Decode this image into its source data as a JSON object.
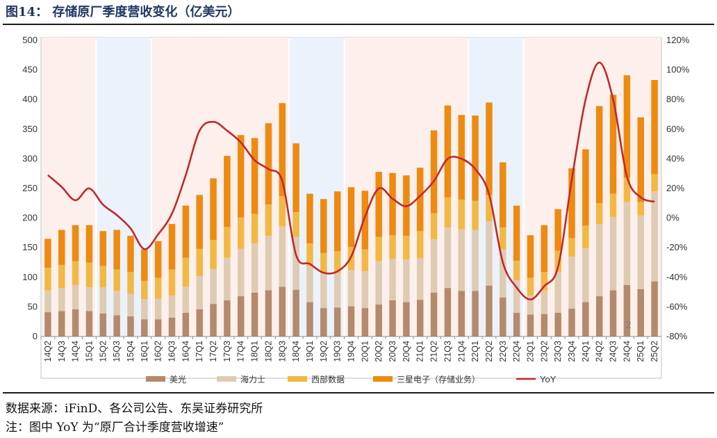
{
  "title": "图14：  存储原厂季度营收变化（亿美元）",
  "source": "数据来源：iFinD、各公司公告、东吴证券研究所",
  "note": "注：图中 YoY 为“原厂合计季度营收增速”",
  "chart_data": {
    "type": "bar",
    "stacked": true,
    "categories": [
      "14Q2",
      "14Q3",
      "14Q4",
      "15Q1",
      "15Q2",
      "15Q3",
      "15Q4",
      "16Q1",
      "16Q2",
      "16Q3",
      "16Q4",
      "17Q1",
      "17Q2",
      "17Q3",
      "17Q4",
      "18Q1",
      "18Q2",
      "18Q3",
      "18Q4",
      "19Q1",
      "19Q2",
      "19Q3",
      "19Q4",
      "20Q1",
      "20Q2",
      "20Q3",
      "20Q4",
      "21Q1",
      "21Q2",
      "21Q3",
      "21Q4",
      "22Q1",
      "22Q2",
      "22Q3",
      "22Q4",
      "23Q1",
      "23Q2",
      "23Q3",
      "23Q4",
      "24Q1",
      "24Q2",
      "24Q3",
      "24Q4",
      "25Q1",
      "25Q2"
    ],
    "series": [
      {
        "name": "美光",
        "color": "#b48a6c",
        "values": [
          41,
          43,
          46,
          43,
          39,
          36,
          34,
          29,
          29,
          32,
          40,
          46,
          55,
          61,
          68,
          74,
          78,
          84,
          79,
          58,
          48,
          49,
          51,
          48,
          54,
          61,
          58,
          62,
          74,
          82,
          77,
          77,
          86,
          66,
          40,
          37,
          38,
          40,
          47,
          58,
          68,
          78,
          87,
          80,
          93
        ]
      },
      {
        "name": "海力士",
        "color": "#dfcbb2",
        "values": [
          37,
          39,
          41,
          40,
          44,
          41,
          38,
          34,
          35,
          37,
          44,
          56,
          59,
          72,
          80,
          83,
          92,
          102,
          89,
          61,
          59,
          58,
          61,
          62,
          73,
          70,
          72,
          70,
          90,
          102,
          104,
          103,
          108,
          81,
          55,
          32,
          40,
          69,
          88,
          91,
          122,
          124,
          140,
          124,
          152
        ]
      },
      {
        "name": "西部数据",
        "color": "#f3b844",
        "values": [
          38,
          39,
          40,
          42,
          36,
          36,
          37,
          31,
          35,
          44,
          49,
          46,
          49,
          52,
          53,
          50,
          53,
          51,
          42,
          38,
          34,
          37,
          39,
          37,
          41,
          40,
          40,
          46,
          44,
          51,
          50,
          49,
          45,
          37,
          33,
          30,
          31,
          36,
          31,
          38,
          35,
          39,
          41,
          23,
          29
        ]
      },
      {
        "name": "三星电子（存储业务）",
        "color": "#ee8a10",
        "values": [
          49,
          59,
          61,
          63,
          59,
          67,
          61,
          53,
          62,
          77,
          88,
          91,
          104,
          120,
          139,
          128,
          137,
          157,
          116,
          84,
          91,
          101,
          101,
          99,
          110,
          105,
          102,
          107,
          140,
          155,
          143,
          144,
          156,
          110,
          93,
          72,
          79,
          70,
          118,
          129,
          164,
          167,
          173,
          143,
          159
        ]
      },
      {
        "name": "YoY",
        "color": "#c0282d",
        "axis": "right",
        "values": [
          29,
          21,
          12,
          20,
          9,
          2,
          -7,
          -21,
          -11,
          3,
          29,
          59,
          65,
          59,
          51,
          39,
          33,
          25,
          -25,
          -31,
          -37,
          -36,
          -26,
          1,
          20,
          13,
          8,
          15,
          25,
          40,
          40,
          33,
          16,
          -30,
          -47,
          -55,
          -46,
          -33,
          26,
          80,
          105,
          80,
          28,
          14,
          11
        ]
      }
    ],
    "ylim": [
      0,
      500
    ],
    "y_ticks": [
      "0",
      "50",
      "100",
      "150",
      "200",
      "250",
      "300",
      "350",
      "400",
      "450",
      "500"
    ],
    "y2lim": [
      -80,
      120
    ],
    "y2_ticks": [
      "-80%",
      "-60%",
      "-40%",
      "-20%",
      "0%",
      "20%",
      "40%",
      "60%",
      "80%",
      "100%",
      "120%"
    ],
    "shaded_periods": [
      {
        "from": "14Q2",
        "to": "15Q1",
        "tone": "up"
      },
      {
        "from": "15Q2",
        "to": "16Q1",
        "tone": "down"
      },
      {
        "from": "16Q2",
        "to": "18Q3",
        "tone": "up"
      },
      {
        "from": "18Q4",
        "to": "19Q3",
        "tone": "down"
      },
      {
        "from": "19Q4",
        "to": "21Q4",
        "tone": "up"
      },
      {
        "from": "22Q1",
        "to": "22Q4",
        "tone": "down"
      },
      {
        "from": "23Q1",
        "to": "25Q2",
        "tone": "up"
      }
    ],
    "shade_colors": {
      "up": "#fdf0ec",
      "down": "#ebf2fb"
    },
    "annotation": "2",
    "legend": [
      "美光",
      "海力士",
      "西部数据",
      "三星电子（存储业务）",
      "YoY"
    ],
    "legend_position": "bottom"
  }
}
